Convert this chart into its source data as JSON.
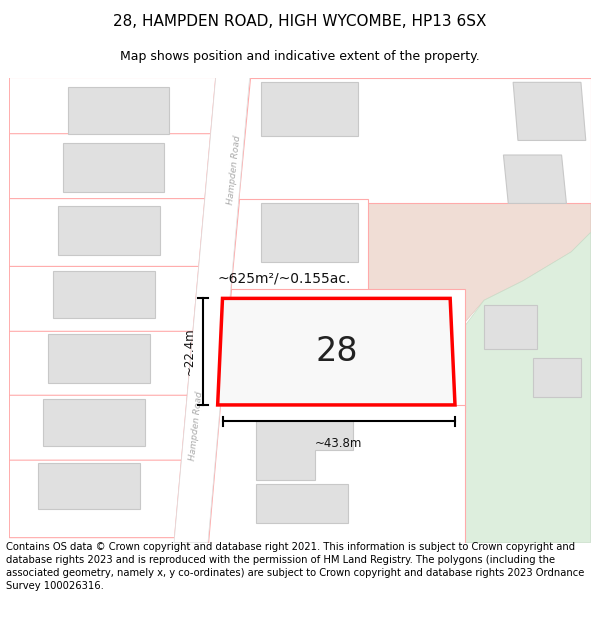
{
  "title": "28, HAMPDEN ROAD, HIGH WYCOMBE, HP13 6SX",
  "subtitle": "Map shows position and indicative extent of the property.",
  "footer": "Contains OS data © Crown copyright and database right 2021. This information is subject to Crown copyright and database rights 2023 and is reproduced with the permission of HM Land Registry. The polygons (including the associated geometry, namely x, y co-ordinates) are subject to Crown copyright and database rights 2023 Ordnance Survey 100026316.",
  "label_text": "28",
  "area_text": "~625m²/~0.155ac.",
  "width_text": "~43.8m",
  "height_text": "~22.4m",
  "road_label": "Hampden Road",
  "title_fontsize": 11,
  "subtitle_fontsize": 9,
  "footer_fontsize": 7.2,
  "map_bg": "#f8f8f8",
  "road_fill": "#ffffff",
  "parcel_outline": "#ffaaaa",
  "bldg_fill": "#e0e0e0",
  "bldg_outline": "#c8c8c8",
  "pink_fill": "#f0ddd5",
  "green_fill": "#ddeedd",
  "prop_outline": "#ff0000"
}
